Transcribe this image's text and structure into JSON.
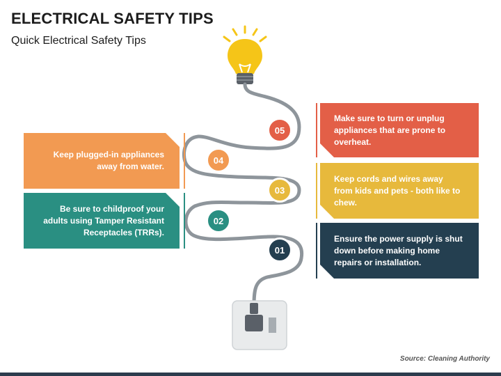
{
  "header": {
    "title": "ELECTRICAL SAFETY TIPS",
    "subtitle": "Quick Electrical Safety Tips"
  },
  "steps": [
    {
      "number": "01",
      "text": "Ensure the power supply is shut down before making home repairs or installation.",
      "color": "#243f50",
      "side": "right"
    },
    {
      "number": "02",
      "text": "Be sure to childproof your adults using Tamper Resistant Receptacles (TRRs).",
      "color": "#2a8f82",
      "side": "left"
    },
    {
      "number": "03",
      "text": "Keep cords and wires away from kids and pets - both like to chew.",
      "color": "#e7b93c",
      "side": "right"
    },
    {
      "number": "04",
      "text": "Keep plugged-in appliances away from water.",
      "color": "#f29a52",
      "side": "left"
    },
    {
      "number": "05",
      "text": "Make sure to turn or unplug appliances that are prone to overheat.",
      "color": "#e35f47",
      "side": "right"
    }
  ],
  "source": "Source: Cleaning Authority",
  "colors": {
    "wire": "#8e959b",
    "bulb": "#f5c518",
    "bulb_base": "#5a6068",
    "socket": "#e9ebec",
    "footer": "#2d3c4d"
  },
  "icons": [
    "light-bulb-icon",
    "wall-socket-icon",
    "plug-icon"
  ]
}
